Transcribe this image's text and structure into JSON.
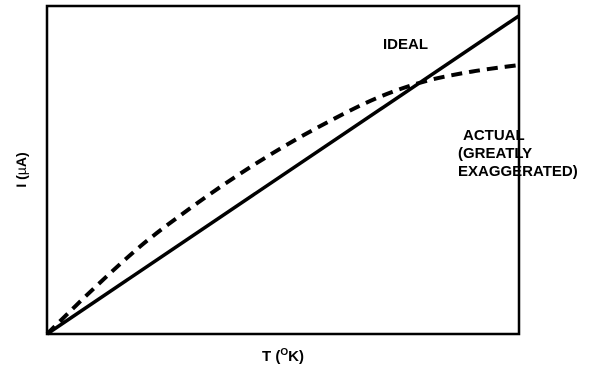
{
  "chart_data": {
    "type": "line",
    "title": "",
    "xlabel": "T (°K)",
    "xlabel_parts": {
      "pre": "T (",
      "sup": "O",
      "post": "K)"
    },
    "ylabel": "I (µA)",
    "ylabel_parts": {
      "pre": "I (",
      "mu": "µ",
      "post": "A)"
    },
    "xlim": [
      0,
      1
    ],
    "ylim": [
      0,
      1
    ],
    "grid": false,
    "series": [
      {
        "name": "IDEAL",
        "style": "solid",
        "color": "#000000",
        "x": [
          0,
          1
        ],
        "y": [
          0,
          0.97
        ]
      },
      {
        "name": "ACTUAL",
        "label_lines": [
          "ACTUAL",
          "(GREATLY",
          "EXAGGERATED)"
        ],
        "style": "dashed",
        "color": "#000000",
        "x": [
          0,
          0.1,
          0.2,
          0.3,
          0.4,
          0.5,
          0.6,
          0.7,
          0.8,
          0.9,
          1.0
        ],
        "y": [
          0,
          0.14,
          0.27,
          0.38,
          0.48,
          0.57,
          0.65,
          0.72,
          0.77,
          0.8,
          0.82
        ]
      }
    ]
  }
}
